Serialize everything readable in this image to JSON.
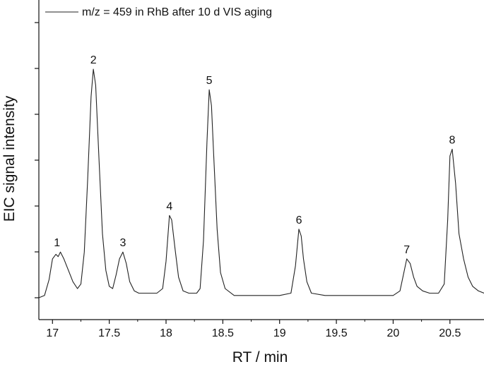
{
  "chart_data": {
    "type": "line",
    "xlabel": "RT / min",
    "ylabel": "EIC signal intensity",
    "xlim": [
      16.88,
      20.8
    ],
    "ylim": [
      0,
      1
    ],
    "x_ticks": [
      "17",
      "17.5",
      "18",
      "18.5",
      "19",
      "19.5",
      "20",
      "20.5"
    ],
    "y_ticks_labeled": false,
    "grid": false,
    "legend_position": "top-left",
    "series": [
      {
        "name": "m/z = 459 in RhB after 10 d VIS aging",
        "color": "#222222",
        "points": [
          [
            16.88,
            0.0
          ],
          [
            16.93,
            0.01
          ],
          [
            16.97,
            0.08
          ],
          [
            17.0,
            0.17
          ],
          [
            17.03,
            0.19
          ],
          [
            17.05,
            0.18
          ],
          [
            17.07,
            0.2
          ],
          [
            17.1,
            0.17
          ],
          [
            17.14,
            0.12
          ],
          [
            17.18,
            0.07
          ],
          [
            17.22,
            0.04
          ],
          [
            17.25,
            0.06
          ],
          [
            17.28,
            0.2
          ],
          [
            17.31,
            0.52
          ],
          [
            17.34,
            0.88
          ],
          [
            17.36,
            1.0
          ],
          [
            17.38,
            0.93
          ],
          [
            17.41,
            0.6
          ],
          [
            17.44,
            0.28
          ],
          [
            17.47,
            0.12
          ],
          [
            17.5,
            0.05
          ],
          [
            17.53,
            0.04
          ],
          [
            17.56,
            0.1
          ],
          [
            17.59,
            0.17
          ],
          [
            17.62,
            0.2
          ],
          [
            17.65,
            0.15
          ],
          [
            17.68,
            0.07
          ],
          [
            17.72,
            0.03
          ],
          [
            17.76,
            0.02
          ],
          [
            17.85,
            0.02
          ],
          [
            17.92,
            0.02
          ],
          [
            17.97,
            0.04
          ],
          [
            18.0,
            0.16
          ],
          [
            18.03,
            0.36
          ],
          [
            18.05,
            0.34
          ],
          [
            18.08,
            0.21
          ],
          [
            18.11,
            0.09
          ],
          [
            18.15,
            0.03
          ],
          [
            18.2,
            0.02
          ],
          [
            18.27,
            0.02
          ],
          [
            18.3,
            0.04
          ],
          [
            18.33,
            0.25
          ],
          [
            18.36,
            0.68
          ],
          [
            18.38,
            0.91
          ],
          [
            18.4,
            0.84
          ],
          [
            18.42,
            0.62
          ],
          [
            18.45,
            0.3
          ],
          [
            18.48,
            0.11
          ],
          [
            18.52,
            0.04
          ],
          [
            18.6,
            0.01
          ],
          [
            18.7,
            0.01
          ],
          [
            18.8,
            0.01
          ],
          [
            18.9,
            0.01
          ],
          [
            19.0,
            0.01
          ],
          [
            19.1,
            0.02
          ],
          [
            19.14,
            0.14
          ],
          [
            19.17,
            0.3
          ],
          [
            19.19,
            0.27
          ],
          [
            19.21,
            0.17
          ],
          [
            19.24,
            0.07
          ],
          [
            19.28,
            0.02
          ],
          [
            19.4,
            0.01
          ],
          [
            19.5,
            0.01
          ],
          [
            19.6,
            0.01
          ],
          [
            19.7,
            0.01
          ],
          [
            19.8,
            0.01
          ],
          [
            19.9,
            0.01
          ],
          [
            20.0,
            0.01
          ],
          [
            20.06,
            0.03
          ],
          [
            20.09,
            0.1
          ],
          [
            20.12,
            0.17
          ],
          [
            20.15,
            0.15
          ],
          [
            20.18,
            0.09
          ],
          [
            20.21,
            0.05
          ],
          [
            20.26,
            0.03
          ],
          [
            20.32,
            0.02
          ],
          [
            20.4,
            0.02
          ],
          [
            20.45,
            0.06
          ],
          [
            20.48,
            0.34
          ],
          [
            20.5,
            0.62
          ],
          [
            20.52,
            0.65
          ],
          [
            20.55,
            0.5
          ],
          [
            20.58,
            0.28
          ],
          [
            20.62,
            0.17
          ],
          [
            20.66,
            0.09
          ],
          [
            20.7,
            0.05
          ],
          [
            20.75,
            0.03
          ],
          [
            20.8,
            0.02
          ]
        ]
      }
    ],
    "annotations": [
      {
        "text": "1",
        "x": 17.04,
        "y": 0.2
      },
      {
        "text": "2",
        "x": 17.36,
        "y": 1.0
      },
      {
        "text": "3",
        "x": 17.62,
        "y": 0.2
      },
      {
        "text": "4",
        "x": 18.03,
        "y": 0.36
      },
      {
        "text": "5",
        "x": 18.38,
        "y": 0.91
      },
      {
        "text": "6",
        "x": 19.17,
        "y": 0.3
      },
      {
        "text": "7",
        "x": 20.12,
        "y": 0.17
      },
      {
        "text": "8",
        "x": 20.52,
        "y": 0.65
      }
    ]
  }
}
